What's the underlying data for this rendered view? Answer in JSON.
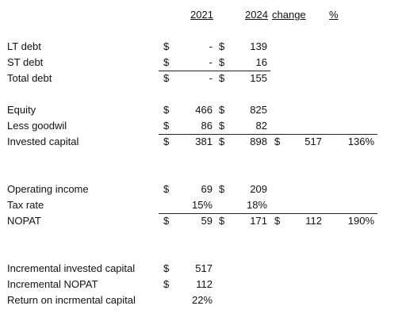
{
  "header": {
    "year1": "2021",
    "year2": "2024",
    "change": "change",
    "pct": "%"
  },
  "sections": [
    {
      "rows": [
        {
          "label": "LT debt",
          "s1": "$",
          "v1": "-",
          "s2": "$",
          "v2": "139"
        },
        {
          "label": "ST debt",
          "s1": "$",
          "v1": "-",
          "s2": "$",
          "v2": "16"
        },
        {
          "label": "Total debt",
          "s1": "$",
          "v1": "-",
          "s2": "$",
          "v2": "155"
        }
      ]
    },
    {
      "rows": [
        {
          "label": "Equity",
          "s1": "$",
          "v1": "466",
          "s2": "$",
          "v2": "825"
        },
        {
          "label": "Less goodwil",
          "s1": "$",
          "v1": "86",
          "s2": "$",
          "v2": "82"
        },
        {
          "label": "Invested capital",
          "s1": "$",
          "v1": "381",
          "s2": "$",
          "v2": "898",
          "s3": "$",
          "v3": "517",
          "pct": "136%"
        }
      ]
    },
    {
      "rows": [
        {
          "label": "Operating income",
          "s1": "$",
          "v1": "69",
          "s2": "$",
          "v2": "209"
        },
        {
          "label": "Tax rate",
          "v1": "15%",
          "v2": "18%"
        },
        {
          "label": "NOPAT",
          "s1": "$",
          "v1": "59",
          "s2": "$",
          "v2": "171",
          "s3": "$",
          "v3": "112",
          "pct": "190%"
        }
      ]
    },
    {
      "rows": [
        {
          "label": "Incremental invested capital",
          "s1": "$",
          "v1": "517"
        },
        {
          "label": "Incremental NOPAT",
          "s1": "$",
          "v1": "112"
        },
        {
          "label": "Return on incrmental capital",
          "v1": "22%"
        }
      ]
    }
  ]
}
